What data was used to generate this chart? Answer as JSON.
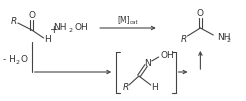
{
  "bg_color": "#ffffff",
  "line_color": "#444444",
  "text_color": "#333333",
  "fontsize": 6.5,
  "aldehyde_O": "O",
  "aldehyde_R": "R",
  "aldehyde_H": "H",
  "plus": "+",
  "nh2oh": "NH",
  "nh2oh_sub": "2",
  "nh2oh_end": "OH",
  "catalyst": "[M]",
  "cat_sub": "cat",
  "minus_water": "- H",
  "minus_water_sub": "2",
  "minus_water_end": "O",
  "amide_O": "O",
  "amide_R": "R",
  "amide_NH2": "NH",
  "amide_NH2_sub": "2",
  "oxime_OH": "OH",
  "oxime_N": "N",
  "oxime_R": "R",
  "oxime_H": "H"
}
